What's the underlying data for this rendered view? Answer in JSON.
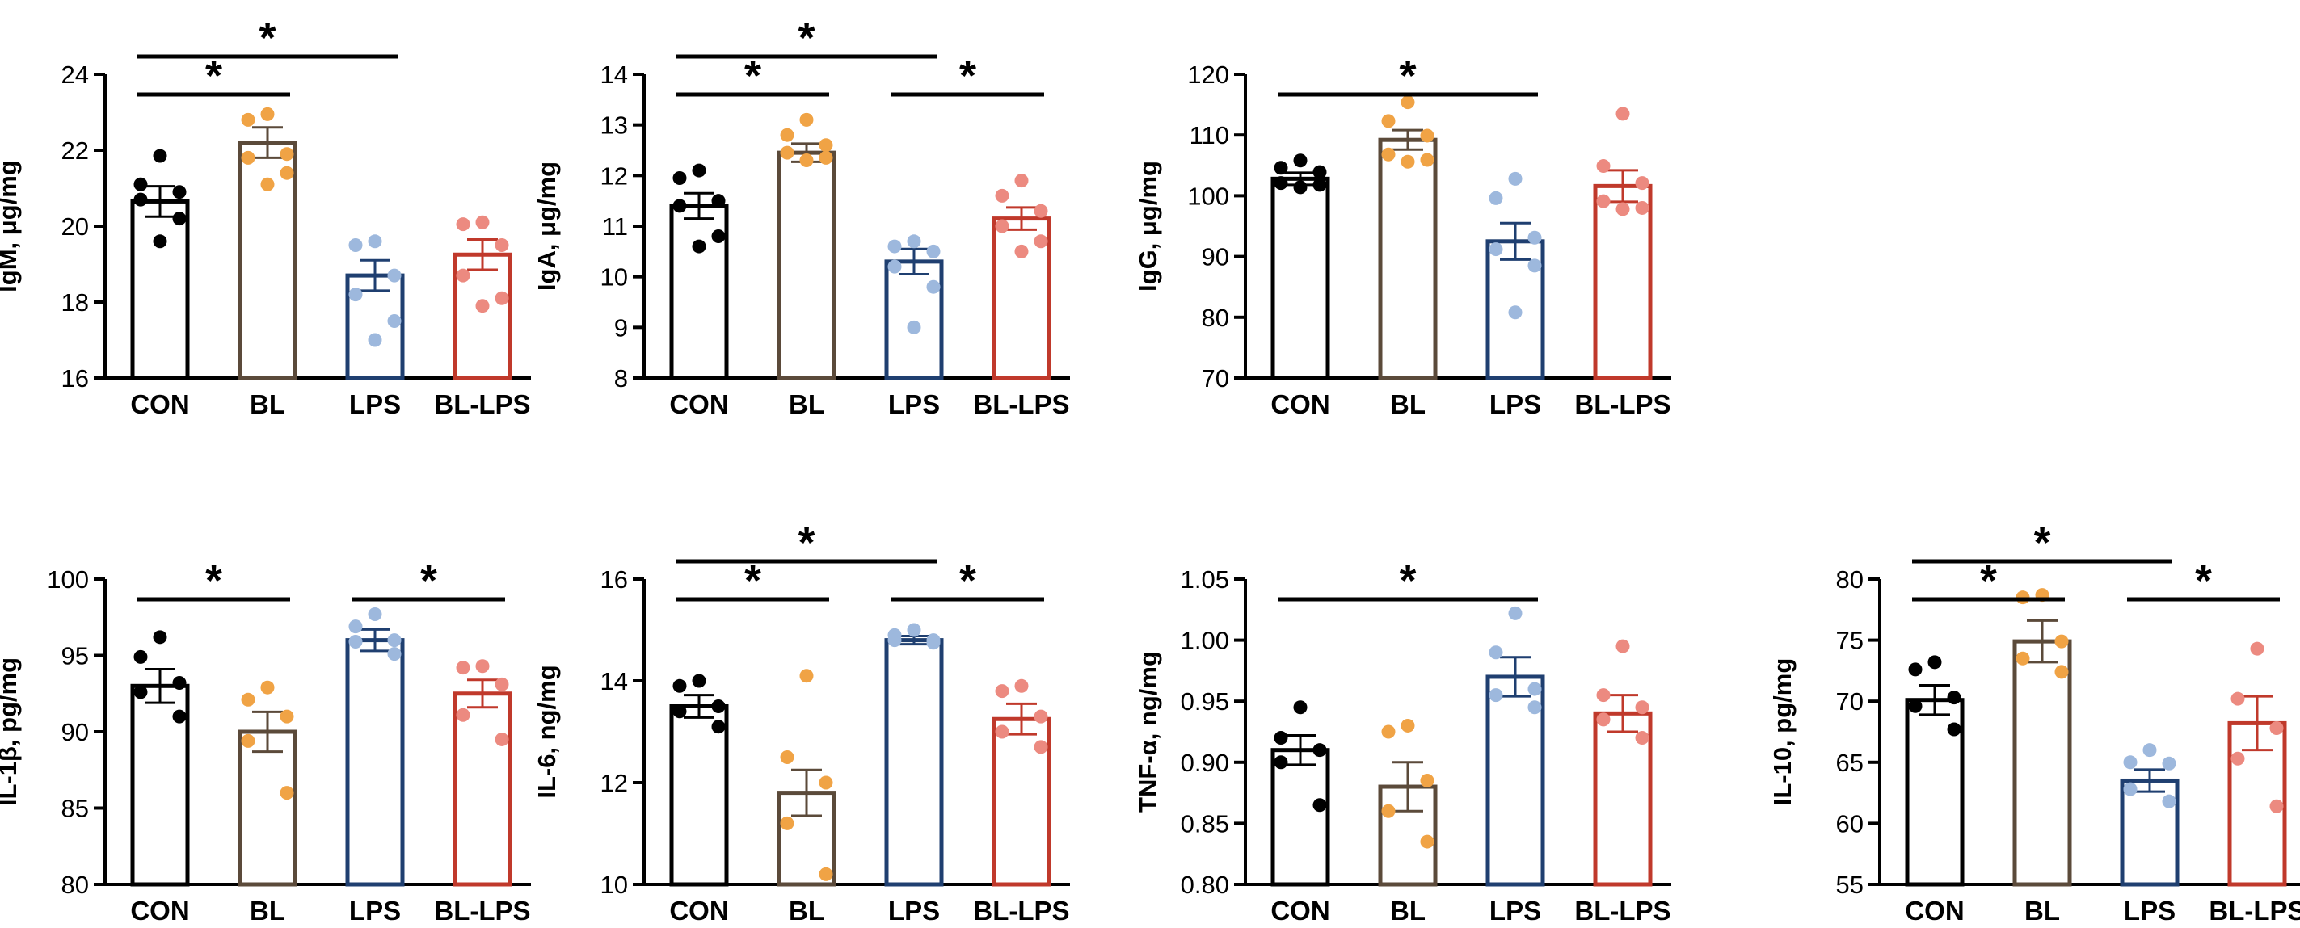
{
  "colors": {
    "CON": "#000000",
    "BL": "#5b4a3a",
    "LPS": "#1f3f70",
    "BL-LPS": "#c0392b",
    "dots": {
      "CON": "#000000",
      "BL": "#f0a345",
      "LPS": "#9db8dd",
      "BL-LPS": "#ec8a80"
    }
  },
  "significance_symbol": "*",
  "chart_data": [
    {
      "type": "bar",
      "title": "",
      "ylabel": "IgM, μg/mg",
      "categories": [
        "CON",
        "BL",
        "LPS",
        "BL-LPS"
      ],
      "values": [
        20.65,
        22.2,
        18.7,
        19.25
      ],
      "errors": [
        0.4,
        0.4,
        0.4,
        0.4
      ],
      "points": [
        [
          21.85,
          21.1,
          20.9,
          20.7,
          20.2,
          19.6
        ],
        [
          22.95,
          22.8,
          21.9,
          21.8,
          21.4,
          21.1
        ],
        [
          19.6,
          19.5,
          18.7,
          18.2,
          17.5,
          17.0
        ],
        [
          20.1,
          20.05,
          19.5,
          18.7,
          18.1,
          17.9
        ]
      ],
      "ylim": [
        16,
        24
      ],
      "ticks": [
        "16",
        "18",
        "20",
        "22",
        "24"
      ],
      "tick_values": [
        16,
        18,
        20,
        22,
        24
      ],
      "significance": [
        {
          "from": "CON",
          "to": "BL",
          "level": 0
        },
        {
          "from": "CON",
          "to": "LPS",
          "level": 1
        }
      ]
    },
    {
      "type": "bar",
      "title": "",
      "ylabel": "IgA, μg/mg",
      "categories": [
        "CON",
        "BL",
        "LPS",
        "BL-LPS"
      ],
      "values": [
        11.4,
        12.45,
        10.3,
        11.15
      ],
      "errors": [
        0.25,
        0.18,
        0.25,
        0.22
      ],
      "points": [
        [
          12.1,
          11.95,
          11.5,
          11.4,
          10.8,
          10.6
        ],
        [
          13.1,
          12.8,
          12.6,
          12.45,
          12.35,
          12.3
        ],
        [
          10.7,
          10.6,
          10.5,
          10.2,
          9.8,
          9.0
        ],
        [
          11.9,
          11.6,
          11.3,
          11.0,
          10.7,
          10.5
        ]
      ],
      "ylim": [
        8,
        14
      ],
      "ticks": [
        "8",
        "9",
        "10",
        "11",
        "12",
        "13",
        "14"
      ],
      "tick_values": [
        8,
        9,
        10,
        11,
        12,
        13,
        14
      ],
      "significance": [
        {
          "from": "CON",
          "to": "BL",
          "level": 0
        },
        {
          "from": "CON",
          "to": "LPS",
          "level": 1
        },
        {
          "from": "LPS",
          "to": "BL-LPS",
          "level": 0
        }
      ]
    },
    {
      "type": "bar",
      "title": "",
      "ylabel": "IgG, μg/mg",
      "categories": [
        "CON",
        "BL",
        "LPS",
        "BL-LPS"
      ],
      "values": [
        102.8,
        109.2,
        92.5,
        101.6
      ],
      "errors": [
        1.0,
        1.6,
        3.0,
        2.6
      ],
      "points": [
        [
          105.8,
          104.6,
          103.9,
          102.1,
          101.8,
          101.4
        ],
        [
          115.4,
          112.3,
          109.9,
          106.8,
          105.9,
          105.6
        ],
        [
          102.8,
          99.6,
          93.1,
          91.2,
          88.5,
          80.8
        ],
        [
          113.5,
          104.9,
          102.1,
          99.1,
          98.0,
          97.8
        ]
      ],
      "ylim": [
        70,
        120
      ],
      "ticks": [
        "70",
        "80",
        "90",
        "100",
        "110",
        "120"
      ],
      "tick_values": [
        70,
        80,
        90,
        100,
        110,
        120
      ],
      "significance": [
        {
          "from": "CON",
          "to": "LPS",
          "level": 0
        }
      ]
    },
    {
      "type": "bar",
      "title": "",
      "ylabel": "IL-1β, pg/mg",
      "categories": [
        "CON",
        "BL",
        "LPS",
        "BL-LPS"
      ],
      "values": [
        93.0,
        90.0,
        96.0,
        92.5
      ],
      "errors": [
        1.1,
        1.3,
        0.7,
        0.9
      ],
      "points": [
        [
          96.2,
          94.9,
          93.2,
          92.6,
          91.0
        ],
        [
          92.9,
          92.1,
          91.0,
          89.4,
          86.0
        ],
        [
          97.7,
          96.9,
          96.0,
          95.9,
          95.1
        ],
        [
          94.3,
          94.2,
          93.1,
          91.1,
          89.5
        ]
      ],
      "ylim": [
        80,
        100
      ],
      "ticks": [
        "80",
        "85",
        "90",
        "95",
        "100"
      ],
      "tick_values": [
        80,
        85,
        90,
        95,
        100
      ],
      "significance": [
        {
          "from": "CON",
          "to": "BL",
          "level": 0
        },
        {
          "from": "LPS",
          "to": "BL-LPS",
          "level": 0
        }
      ]
    },
    {
      "type": "bar",
      "title": "",
      "ylabel": "IL-6, ng/mg",
      "categories": [
        "CON",
        "BL",
        "LPS",
        "BL-LPS"
      ],
      "values": [
        13.5,
        11.8,
        14.8,
        13.25
      ],
      "errors": [
        0.22,
        0.45,
        0.08,
        0.3
      ],
      "points": [
        [
          14.0,
          13.9,
          13.5,
          13.4,
          13.1
        ],
        [
          14.1,
          12.5,
          12.0,
          11.2,
          10.2
        ],
        [
          15.0,
          14.9,
          14.8,
          14.8,
          14.75
        ],
        [
          13.9,
          13.8,
          13.3,
          13.0,
          12.7
        ]
      ],
      "ylim": [
        10,
        16
      ],
      "ticks": [
        "10",
        "12",
        "14",
        "16"
      ],
      "tick_values": [
        10,
        12,
        14,
        16
      ],
      "significance": [
        {
          "from": "CON",
          "to": "BL",
          "level": 0
        },
        {
          "from": "CON",
          "to": "LPS",
          "level": 1
        },
        {
          "from": "LPS",
          "to": "BL-LPS",
          "level": 0
        }
      ]
    },
    {
      "type": "bar",
      "title": "",
      "ylabel": "TNF-α, ng/mg",
      "categories": [
        "CON",
        "BL",
        "LPS",
        "BL-LPS"
      ],
      "values": [
        0.91,
        0.88,
        0.97,
        0.94
      ],
      "errors": [
        0.012,
        0.02,
        0.016,
        0.015
      ],
      "points": [
        [
          0.945,
          0.92,
          0.91,
          0.9,
          0.865
        ],
        [
          0.93,
          0.925,
          0.885,
          0.86,
          0.835
        ],
        [
          1.022,
          0.99,
          0.96,
          0.955,
          0.945
        ],
        [
          0.995,
          0.955,
          0.945,
          0.935,
          0.92
        ]
      ],
      "ylim": [
        0.8,
        1.05
      ],
      "ticks": [
        "0.80",
        "0.85",
        "0.90",
        "0.95",
        "1.00",
        "1.05"
      ],
      "tick_values": [
        0.8,
        0.85,
        0.9,
        0.95,
        1.0,
        1.05
      ],
      "significance": [
        {
          "from": "CON",
          "to": "LPS",
          "level": 0
        }
      ]
    },
    {
      "type": "bar",
      "title": "",
      "ylabel": "IL-10, pg/mg",
      "categories": [
        "CON",
        "BL",
        "LPS",
        "BL-LPS"
      ],
      "values": [
        70.1,
        74.9,
        63.5,
        68.2
      ],
      "errors": [
        1.2,
        1.7,
        0.9,
        2.2
      ],
      "points": [
        [
          73.2,
          72.6,
          70.3,
          69.6,
          67.7
        ],
        [
          78.7,
          78.5,
          74.9,
          73.5,
          72.4
        ],
        [
          66.0,
          65.0,
          64.9,
          62.8,
          61.8
        ],
        [
          74.3,
          70.2,
          67.8,
          65.3,
          61.4
        ]
      ],
      "ylim": [
        55,
        80
      ],
      "ticks": [
        "55",
        "60",
        "65",
        "70",
        "75",
        "80"
      ],
      "tick_values": [
        55,
        60,
        65,
        70,
        75,
        80
      ],
      "significance": [
        {
          "from": "CON",
          "to": "BL",
          "level": 0
        },
        {
          "from": "CON",
          "to": "LPS",
          "level": 1
        },
        {
          "from": "LPS",
          "to": "BL-LPS",
          "level": 0
        }
      ]
    }
  ]
}
